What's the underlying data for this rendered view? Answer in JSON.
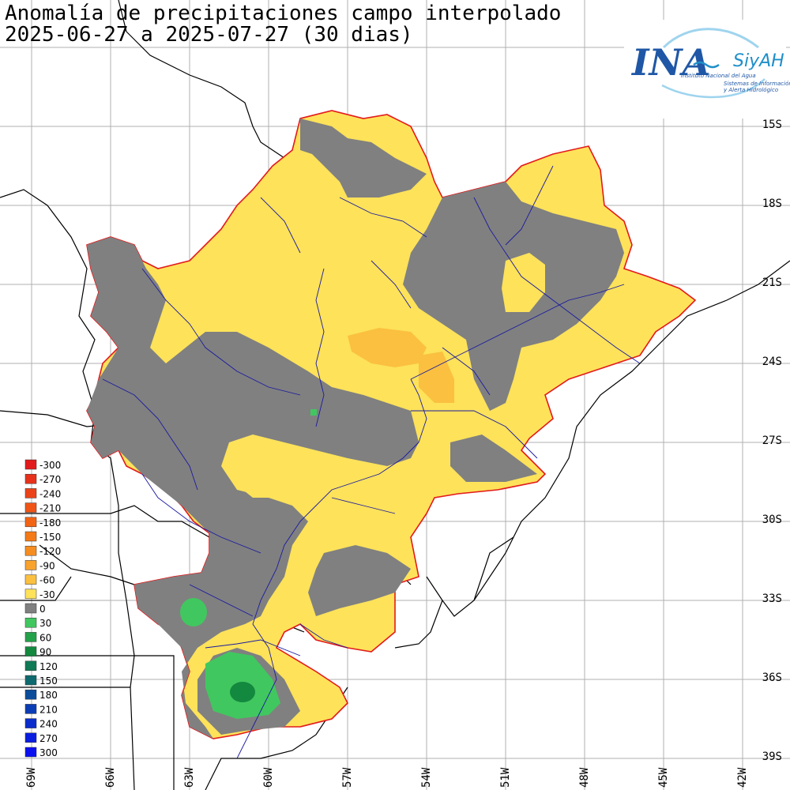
{
  "header": {
    "title": "Anomalía de precipitaciones campo interpolado",
    "subtitle": "2025-06-27 a 2025-07-27 (30 dias)"
  },
  "logo": {
    "ina": "INA",
    "siyah": "SiyAH",
    "line1": "Instituto Nacional del Agua",
    "line2": "Sistemas de Información",
    "line3": "y Alerta Hidrológico",
    "colors": {
      "ina": "#1f57a6",
      "siyah": "#1f8fc9"
    }
  },
  "lat_labels": [
    "15S",
    "18S",
    "21S",
    "24S",
    "27S",
    "30S",
    "33S",
    "36S",
    "39S"
  ],
  "lon_labels": [
    "69W",
    "66W",
    "63W",
    "60W",
    "57W",
    "54W",
    "51W",
    "48W",
    "45W",
    "42W"
  ],
  "legend": {
    "items": [
      {
        "label": "-300",
        "color": "#e31a1c"
      },
      {
        "label": "-270",
        "color": "#e8311a"
      },
      {
        "label": "-240",
        "color": "#ec4218"
      },
      {
        "label": "-210",
        "color": "#f05516"
      },
      {
        "label": "-180",
        "color": "#f26414"
      },
      {
        "label": "-150",
        "color": "#f47a16"
      },
      {
        "label": "-120",
        "color": "#f68d20"
      },
      {
        "label": "-90",
        "color": "#f8a32e"
      },
      {
        "label": "-60",
        "color": "#fbc03f"
      },
      {
        "label": "-30",
        "color": "#fde25a"
      },
      {
        "label": "0",
        "color": "#808080"
      },
      {
        "label": "30",
        "color": "#41c75f"
      },
      {
        "label": "60",
        "color": "#24a24a"
      },
      {
        "label": "90",
        "color": "#13883f"
      },
      {
        "label": "120",
        "color": "#0f7a55"
      },
      {
        "label": "150",
        "color": "#0e6a6e"
      },
      {
        "label": "180",
        "color": "#0b4d9a"
      },
      {
        "label": "210",
        "color": "#0a3db5"
      },
      {
        "label": "240",
        "color": "#0a2dcc"
      },
      {
        "label": "270",
        "color": "#0a1ee0"
      },
      {
        "label": "300",
        "color": "#0a10f0"
      }
    ]
  },
  "colors": {
    "dry_light": "#fde25a",
    "dry_mid": "#fbc03f",
    "near_zero": "#808080",
    "wet_light": "#41c75f",
    "wet_mid": "#13883f",
    "basin_outline": "#e31a1c",
    "rivers": "#1a1aa0",
    "grid": "#b0b0b0"
  }
}
